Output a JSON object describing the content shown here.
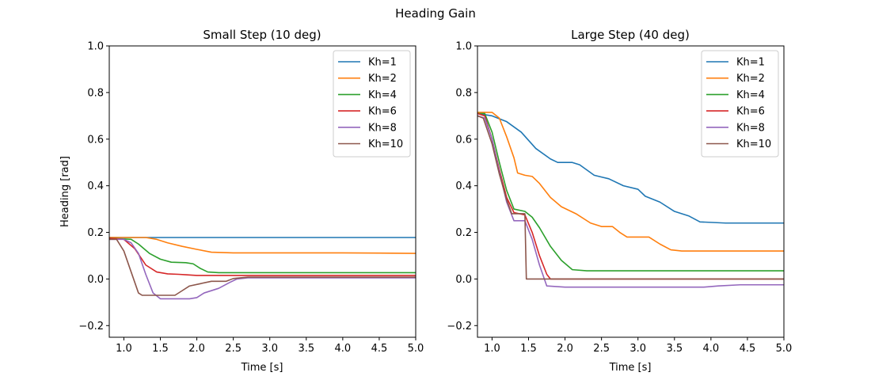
{
  "figure": {
    "suptitle": "Heading Gain"
  },
  "chart_data": [
    {
      "type": "line",
      "title": "Small Step (10 deg)",
      "xlabel": "Time [s]",
      "ylabel": "Heading [rad]",
      "xlim": [
        0.8,
        5.0
      ],
      "ylim": [
        -0.25,
        1.0
      ],
      "xticks": [
        "1.0",
        "1.5",
        "2.0",
        "2.5",
        "3.0",
        "3.5",
        "4.0",
        "4.5",
        "5.0"
      ],
      "yticks": [
        "−0.2",
        "0.0",
        "0.2",
        "0.4",
        "0.6",
        "0.8",
        "1.0"
      ],
      "grid": false,
      "legend_position": "top-right",
      "series": [
        {
          "name": "Kh=1",
          "color": "#1f77b4",
          "points": [
            [
              0.8,
              0.178
            ],
            [
              1.5,
              0.178
            ],
            [
              2.5,
              0.178
            ],
            [
              3.5,
              0.178
            ],
            [
              4.5,
              0.178
            ],
            [
              5.0,
              0.178
            ]
          ]
        },
        {
          "name": "Kh=2",
          "color": "#ff7f0e",
          "points": [
            [
              0.8,
              0.178
            ],
            [
              1.3,
              0.178
            ],
            [
              1.45,
              0.17
            ],
            [
              1.6,
              0.155
            ],
            [
              1.8,
              0.14
            ],
            [
              2.0,
              0.127
            ],
            [
              2.2,
              0.115
            ],
            [
              2.5,
              0.112
            ],
            [
              3.0,
              0.112
            ],
            [
              4.0,
              0.112
            ],
            [
              4.5,
              0.111
            ],
            [
              5.0,
              0.11
            ]
          ]
        },
        {
          "name": "Kh=4",
          "color": "#2ca02c",
          "points": [
            [
              0.8,
              0.175
            ],
            [
              1.1,
              0.17
            ],
            [
              1.2,
              0.15
            ],
            [
              1.35,
              0.11
            ],
            [
              1.5,
              0.085
            ],
            [
              1.65,
              0.072
            ],
            [
              1.85,
              0.07
            ],
            [
              1.95,
              0.065
            ],
            [
              2.05,
              0.045
            ],
            [
              2.15,
              0.03
            ],
            [
              2.3,
              0.027
            ],
            [
              3.0,
              0.027
            ],
            [
              4.0,
              0.027
            ],
            [
              5.0,
              0.027
            ]
          ]
        },
        {
          "name": "Kh=6",
          "color": "#d62728",
          "points": [
            [
              0.8,
              0.175
            ],
            [
              1.0,
              0.17
            ],
            [
              1.15,
              0.13
            ],
            [
              1.3,
              0.06
            ],
            [
              1.45,
              0.03
            ],
            [
              1.6,
              0.022
            ],
            [
              1.75,
              0.02
            ],
            [
              1.85,
              0.018
            ],
            [
              2.0,
              0.015
            ],
            [
              2.5,
              0.015
            ],
            [
              3.0,
              0.015
            ],
            [
              4.0,
              0.015
            ],
            [
              5.0,
              0.015
            ]
          ]
        },
        {
          "name": "Kh=8",
          "color": "#9467bd",
          "points": [
            [
              0.8,
              0.17
            ],
            [
              1.0,
              0.17
            ],
            [
              1.1,
              0.155
            ],
            [
              1.2,
              0.11
            ],
            [
              1.3,
              0.02
            ],
            [
              1.4,
              -0.06
            ],
            [
              1.5,
              -0.085
            ],
            [
              1.65,
              -0.085
            ],
            [
              1.9,
              -0.085
            ],
            [
              2.0,
              -0.08
            ],
            [
              2.1,
              -0.06
            ],
            [
              2.3,
              -0.04
            ],
            [
              2.45,
              -0.015
            ],
            [
              2.55,
              0.0
            ],
            [
              2.7,
              0.005
            ],
            [
              3.0,
              0.005
            ],
            [
              4.0,
              0.005
            ],
            [
              5.0,
              0.005
            ]
          ]
        },
        {
          "name": "Kh=10",
          "color": "#8c564b",
          "points": [
            [
              0.8,
              0.17
            ],
            [
              0.9,
              0.17
            ],
            [
              1.0,
              0.12
            ],
            [
              1.1,
              0.03
            ],
            [
              1.2,
              -0.06
            ],
            [
              1.25,
              -0.07
            ],
            [
              1.5,
              -0.07
            ],
            [
              1.7,
              -0.07
            ],
            [
              1.8,
              -0.05
            ],
            [
              1.9,
              -0.03
            ],
            [
              2.05,
              -0.02
            ],
            [
              2.2,
              -0.01
            ],
            [
              2.4,
              -0.01
            ],
            [
              2.5,
              0.002
            ],
            [
              2.7,
              0.008
            ],
            [
              3.0,
              0.008
            ],
            [
              4.0,
              0.008
            ],
            [
              5.0,
              0.008
            ]
          ]
        }
      ]
    },
    {
      "type": "line",
      "title": "Large Step (40 deg)",
      "xlabel": "Time [s]",
      "ylabel": "",
      "xlim": [
        0.8,
        5.0
      ],
      "ylim": [
        -0.25,
        1.0
      ],
      "xticks": [
        "1.0",
        "1.5",
        "2.0",
        "2.5",
        "3.0",
        "3.5",
        "4.0",
        "4.5",
        "5.0"
      ],
      "yticks": [
        "−0.2",
        "0.0",
        "0.2",
        "0.4",
        "0.6",
        "0.8",
        "1.0"
      ],
      "grid": false,
      "legend_position": "top-right",
      "series": [
        {
          "name": "Kh=1",
          "color": "#1f77b4",
          "points": [
            [
              0.8,
              0.71
            ],
            [
              1.0,
              0.7
            ],
            [
              1.2,
              0.675
            ],
            [
              1.4,
              0.63
            ],
            [
              1.6,
              0.56
            ],
            [
              1.8,
              0.515
            ],
            [
              1.9,
              0.5
            ],
            [
              2.1,
              0.5
            ],
            [
              2.2,
              0.49
            ],
            [
              2.4,
              0.445
            ],
            [
              2.6,
              0.43
            ],
            [
              2.8,
              0.4
            ],
            [
              3.0,
              0.385
            ],
            [
              3.1,
              0.355
            ],
            [
              3.3,
              0.33
            ],
            [
              3.5,
              0.29
            ],
            [
              3.7,
              0.27
            ],
            [
              3.85,
              0.245
            ],
            [
              4.2,
              0.24
            ],
            [
              4.5,
              0.24
            ],
            [
              5.0,
              0.24
            ]
          ]
        },
        {
          "name": "Kh=2",
          "color": "#ff7f0e",
          "points": [
            [
              0.8,
              0.715
            ],
            [
              1.0,
              0.715
            ],
            [
              1.1,
              0.69
            ],
            [
              1.2,
              0.61
            ],
            [
              1.3,
              0.52
            ],
            [
              1.35,
              0.455
            ],
            [
              1.45,
              0.445
            ],
            [
              1.55,
              0.44
            ],
            [
              1.65,
              0.41
            ],
            [
              1.8,
              0.35
            ],
            [
              1.95,
              0.31
            ],
            [
              2.15,
              0.28
            ],
            [
              2.35,
              0.24
            ],
            [
              2.5,
              0.225
            ],
            [
              2.65,
              0.225
            ],
            [
              2.75,
              0.2
            ],
            [
              2.85,
              0.18
            ],
            [
              3.15,
              0.18
            ],
            [
              3.3,
              0.15
            ],
            [
              3.45,
              0.125
            ],
            [
              3.6,
              0.12
            ],
            [
              4.0,
              0.12
            ],
            [
              4.5,
              0.12
            ],
            [
              5.0,
              0.12
            ]
          ]
        },
        {
          "name": "Kh=4",
          "color": "#2ca02c",
          "points": [
            [
              0.8,
              0.71
            ],
            [
              0.9,
              0.71
            ],
            [
              1.0,
              0.63
            ],
            [
              1.1,
              0.5
            ],
            [
              1.2,
              0.38
            ],
            [
              1.3,
              0.3
            ],
            [
              1.45,
              0.29
            ],
            [
              1.55,
              0.265
            ],
            [
              1.65,
              0.22
            ],
            [
              1.8,
              0.14
            ],
            [
              1.95,
              0.08
            ],
            [
              2.1,
              0.04
            ],
            [
              2.3,
              0.035
            ],
            [
              3.0,
              0.035
            ],
            [
              4.0,
              0.035
            ],
            [
              5.0,
              0.035
            ]
          ]
        },
        {
          "name": "Kh=6",
          "color": "#d62728",
          "points": [
            [
              0.8,
              0.71
            ],
            [
              0.9,
              0.7
            ],
            [
              1.0,
              0.6
            ],
            [
              1.1,
              0.47
            ],
            [
              1.2,
              0.35
            ],
            [
              1.3,
              0.285
            ],
            [
              1.45,
              0.275
            ],
            [
              1.55,
              0.2
            ],
            [
              1.65,
              0.1
            ],
            [
              1.75,
              0.02
            ],
            [
              1.8,
              0.0
            ],
            [
              2.0,
              0.0
            ],
            [
              3.0,
              0.0
            ],
            [
              4.0,
              0.0
            ],
            [
              5.0,
              0.0
            ]
          ]
        },
        {
          "name": "Kh=8",
          "color": "#9467bd",
          "points": [
            [
              0.8,
              0.7
            ],
            [
              0.9,
              0.69
            ],
            [
              1.0,
              0.6
            ],
            [
              1.1,
              0.46
            ],
            [
              1.2,
              0.33
            ],
            [
              1.3,
              0.25
            ],
            [
              1.45,
              0.25
            ],
            [
              1.55,
              0.17
            ],
            [
              1.65,
              0.06
            ],
            [
              1.75,
              -0.03
            ],
            [
              2.0,
              -0.035
            ],
            [
              3.0,
              -0.035
            ],
            [
              3.9,
              -0.035
            ],
            [
              4.1,
              -0.03
            ],
            [
              4.4,
              -0.025
            ],
            [
              5.0,
              -0.025
            ]
          ]
        },
        {
          "name": "Kh=10",
          "color": "#8c564b",
          "points": [
            [
              0.8,
              0.7
            ],
            [
              0.88,
              0.69
            ],
            [
              1.0,
              0.58
            ],
            [
              1.1,
              0.45
            ],
            [
              1.2,
              0.34
            ],
            [
              1.27,
              0.28
            ],
            [
              1.45,
              0.28
            ],
            [
              1.47,
              0.0
            ],
            [
              2.0,
              0.0
            ],
            [
              3.0,
              0.0
            ],
            [
              4.0,
              0.0
            ],
            [
              5.0,
              0.0
            ]
          ]
        }
      ]
    }
  ]
}
